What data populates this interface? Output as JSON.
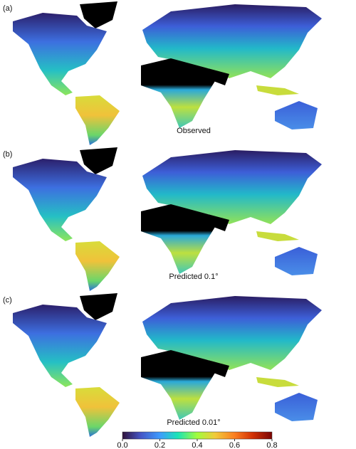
{
  "panels": [
    {
      "label": "(a)",
      "caption": "Observed"
    },
    {
      "label": "(b)",
      "caption": "Predicted 0.1°"
    },
    {
      "label": "(c)",
      "caption": "Predicted 0.01°"
    }
  ],
  "colorbar": {
    "range": [
      0,
      0.8
    ],
    "ticks": [
      {
        "value": 0,
        "label": "0.0"
      },
      0.2,
      0.4,
      0.6,
      0.8
    ]
  }
}
